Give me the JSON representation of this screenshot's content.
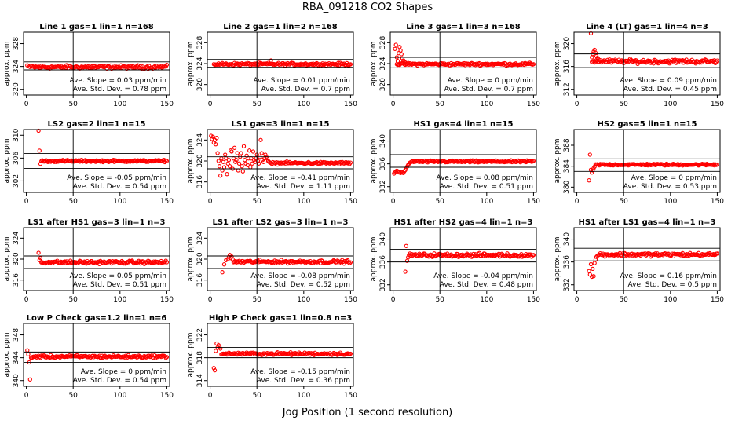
{
  "title": "RBA_091218  CO2 Shapes",
  "xlabel": "Jog Position (1 second resolution)",
  "chart_data": [
    {
      "type": "scatter",
      "title": "Line 1 gas=1 lin=1 n=168",
      "ylabel": "approx. ppm",
      "xlim": [
        -3,
        153
      ],
      "ylim": [
        319,
        330
      ],
      "xticks": [
        0,
        50,
        100,
        150
      ],
      "yticks": [
        320,
        324,
        328
      ],
      "hlines": [
        323.4,
        324.8
      ],
      "vline": 50,
      "slope_text": "Ave. Slope = 0.03  ppm/min",
      "sd_text": "Ave. Std. Dev. = 0.78  ppm",
      "baseline": 323.9,
      "noise": 0.25,
      "early": [
        [
          1,
          324.2
        ],
        [
          3,
          324.0
        ]
      ]
    },
    {
      "type": "scatter",
      "title": "Line 2 gas=1 lin=2 n=168",
      "ylabel": "approx. ppm",
      "xlim": [
        -3,
        153
      ],
      "ylim": [
        318,
        330
      ],
      "xticks": [
        0,
        50,
        100,
        150
      ],
      "yticks": [
        320,
        324,
        328
      ],
      "hlines": [
        323.3,
        324.8
      ],
      "vline": 50,
      "slope_text": "Ave. Slope = 0.01  ppm/min",
      "sd_text": "Ave. Std. Dev. = 0.7  ppm",
      "baseline": 323.9,
      "noise": 0.2,
      "early": [
        [
          65,
          324.6
        ]
      ]
    },
    {
      "type": "scatter",
      "title": "Line 3 gas=1 lin=3 n=168",
      "ylabel": "approx. ppm",
      "xlim": [
        -3,
        153
      ],
      "ylim": [
        318,
        330
      ],
      "xticks": [
        0,
        50,
        100,
        150
      ],
      "yticks": [
        320,
        324,
        328
      ],
      "hlines": [
        323.2,
        325.2
      ],
      "vline": 50,
      "slope_text": "Ave. Slope = 0  ppm/min",
      "sd_text": "Ave. Std. Dev. = 0.7  ppm",
      "baseline": 323.9,
      "noise": 0.2,
      "early": [
        [
          2,
          326.8
        ],
        [
          3,
          327.6
        ],
        [
          4,
          325.2
        ],
        [
          5,
          324.5
        ],
        [
          6,
          326.0
        ],
        [
          7,
          327.2
        ],
        [
          8,
          326.5
        ],
        [
          9,
          325.8
        ],
        [
          10,
          325.0
        ],
        [
          11,
          324.6
        ],
        [
          12,
          324.4
        ],
        [
          13,
          324.2
        ]
      ]
    },
    {
      "type": "scatter",
      "title": "Line 4 (LT) gas=1 lin=4 n=3",
      "ylabel": "approx. ppm",
      "xlim": [
        -3,
        153
      ],
      "ylim": [
        311,
        322
      ],
      "xticks": [
        0,
        50,
        100,
        150
      ],
      "yticks": [
        312,
        316,
        320
      ],
      "hlines": [
        315.8,
        318.2
      ],
      "vline": 50,
      "slope_text": "Ave. Slope = 0.09  ppm/min",
      "sd_text": "Ave. Std. Dev. = 0.45  ppm",
      "baseline": 316.9,
      "noise": 0.3,
      "start": 16,
      "early": [
        [
          15,
          321.8
        ],
        [
          16,
          317.6
        ],
        [
          17,
          318.2
        ],
        [
          18,
          318.6
        ],
        [
          19,
          318.9
        ],
        [
          20,
          318.4
        ],
        [
          21,
          317.8
        ],
        [
          22,
          317.5
        ],
        [
          23,
          317.3
        ]
      ]
    },
    {
      "type": "scatter",
      "title": "LS2 gas=2 lin=1 n=15",
      "ylabel": "approx. ppm",
      "xlim": [
        -3,
        153
      ],
      "ylim": [
        300,
        311
      ],
      "xticks": [
        0,
        50,
        100,
        150
      ],
      "yticks": [
        302,
        306,
        310
      ],
      "hlines": [
        304.2,
        306.8
      ],
      "vline": 50,
      "slope_text": "Ave. Slope = -0.05  ppm/min",
      "sd_text": "Ave. Std. Dev. = 0.54  ppm",
      "baseline": 305.5,
      "noise": 0.15,
      "start": 16,
      "early": [
        [
          13,
          310.8
        ],
        [
          14,
          307.3
        ],
        [
          15,
          305.0
        ]
      ]
    },
    {
      "type": "scatter",
      "title": "LS1 gas=3 lin=1 n=15",
      "ylabel": "approx. ppm",
      "xlim": [
        -3,
        153
      ],
      "ylim": [
        314,
        326
      ],
      "xticks": [
        0,
        50,
        100,
        150
      ],
      "yticks": [
        316,
        320,
        324
      ],
      "hlines": [
        318.5,
        320.8
      ],
      "vline": 50,
      "slope_text": "Ave. Slope = -0.41  ppm/min",
      "sd_text": "Ave. Std. Dev. = 1.11  ppm",
      "baseline": 319.6,
      "noise": 0.2,
      "start": 66,
      "early": [
        [
          1,
          324.8
        ],
        [
          2,
          324.2
        ],
        [
          3,
          324.6
        ],
        [
          4,
          323.5
        ],
        [
          5,
          324.0
        ],
        [
          6,
          323.2
        ],
        [
          7,
          324.4
        ],
        [
          8,
          321.5
        ],
        [
          9,
          320.0
        ],
        [
          10,
          319.0
        ],
        [
          11,
          317.2
        ],
        [
          12,
          320.5
        ],
        [
          13,
          318.2
        ],
        [
          14,
          319.8
        ],
        [
          15,
          318.8
        ],
        [
          16,
          321.2
        ],
        [
          17,
          320.5
        ],
        [
          18,
          317.5
        ],
        [
          19,
          319.5
        ],
        [
          20,
          320.2
        ],
        [
          21,
          319.0
        ],
        [
          22,
          322.0
        ],
        [
          23,
          321.8
        ],
        [
          24,
          318.5
        ],
        [
          25,
          320.5
        ],
        [
          26,
          322.5
        ],
        [
          27,
          319.8
        ],
        [
          28,
          320.2
        ],
        [
          29,
          321.5
        ],
        [
          30,
          318.2
        ],
        [
          31,
          319.5
        ],
        [
          32,
          320.8
        ],
        [
          33,
          321.5
        ],
        [
          34,
          319.0
        ],
        [
          35,
          318.0
        ],
        [
          36,
          322.8
        ],
        [
          37,
          320.2
        ],
        [
          38,
          319.5
        ],
        [
          39,
          321.0
        ],
        [
          40,
          319.2
        ],
        [
          41,
          320.5
        ],
        [
          42,
          322.0
        ],
        [
          43,
          318.8
        ],
        [
          44,
          320.5
        ],
        [
          45,
          319.5
        ],
        [
          46,
          321.8
        ],
        [
          47,
          320.2
        ],
        [
          48,
          319.8
        ],
        [
          49,
          320.5
        ],
        [
          50,
          321.2
        ],
        [
          51,
          320.0
        ],
        [
          52,
          319.5
        ],
        [
          53,
          320.8
        ],
        [
          54,
          324.0
        ],
        [
          55,
          321.5
        ],
        [
          56,
          320.2
        ],
        [
          57,
          319.8
        ],
        [
          58,
          320.5
        ],
        [
          59,
          321.2
        ],
        [
          60,
          320.8
        ],
        [
          61,
          320.5
        ],
        [
          62,
          320.0
        ],
        [
          63,
          319.8
        ],
        [
          64,
          319.7
        ],
        [
          65,
          319.6
        ]
      ]
    },
    {
      "type": "scatter",
      "title": "HS1 gas=4 lin=1 n=15",
      "ylabel": "approx. ppm",
      "xlim": [
        -3,
        153
      ],
      "ylim": [
        331,
        342
      ],
      "xticks": [
        0,
        50,
        100,
        150
      ],
      "yticks": [
        332,
        336,
        340
      ],
      "hlines": [
        335.4,
        337.6
      ],
      "vline": 50,
      "slope_text": "Ave. Slope = 0.08  ppm/min",
      "sd_text": "Ave. Std. Dev. = 0.51  ppm",
      "baseline": 336.4,
      "noise": 0.15,
      "start": 22,
      "early": [
        [
          1,
          334.3
        ],
        [
          2,
          334.5
        ],
        [
          3,
          334.6
        ],
        [
          4,
          334.8
        ],
        [
          5,
          334.7
        ],
        [
          6,
          334.5
        ],
        [
          7,
          334.6
        ],
        [
          8,
          334.4
        ],
        [
          9,
          334.6
        ],
        [
          10,
          334.5
        ],
        [
          11,
          334.4
        ],
        [
          12,
          334.7
        ],
        [
          13,
          334.9
        ],
        [
          14,
          335.2
        ],
        [
          15,
          335.5
        ],
        [
          16,
          335.8
        ],
        [
          17,
          336.0
        ],
        [
          18,
          336.2
        ],
        [
          19,
          336.3
        ],
        [
          20,
          336.4
        ],
        [
          21,
          336.5
        ]
      ]
    },
    {
      "type": "scatter",
      "title": "HS2 gas=5 lin=1 n=15",
      "ylabel": "approx. ppm",
      "xlim": [
        -3,
        153
      ],
      "ylim": [
        379,
        391
      ],
      "xticks": [
        0,
        50,
        100,
        150
      ],
      "yticks": [
        380,
        384,
        388
      ],
      "hlines": [
        383.0,
        385.4
      ],
      "vline": 50,
      "slope_text": "Ave. Slope = 0  ppm/min",
      "sd_text": "Ave. Std. Dev. = 0.53  ppm",
      "baseline": 384.3,
      "noise": 0.15,
      "start": 20,
      "early": [
        [
          13,
          381.3
        ],
        [
          14,
          386.2
        ],
        [
          15,
          383.3
        ],
        [
          16,
          382.8
        ],
        [
          17,
          383.2
        ],
        [
          18,
          383.6
        ],
        [
          19,
          383.9
        ]
      ]
    },
    {
      "type": "scatter",
      "title": "LS1 after HS1 gas=3 lin=1 n=3",
      "ylabel": "approx. ppm",
      "xlim": [
        -3,
        153
      ],
      "ylim": [
        314,
        326
      ],
      "xticks": [
        0,
        50,
        100,
        150
      ],
      "yticks": [
        316,
        320,
        324
      ],
      "hlines": [
        318.2,
        320.6
      ],
      "vline": 50,
      "slope_text": "Ave. Slope = 0.05  ppm/min",
      "sd_text": "Ave. Std. Dev. = 0.51  ppm",
      "baseline": 319.4,
      "noise": 0.25,
      "start": 16,
      "early": [
        [
          13,
          321.2
        ],
        [
          14,
          319.8
        ],
        [
          15,
          320.2
        ]
      ]
    },
    {
      "type": "scatter",
      "title": "LS1 after LS2 gas=3 lin=1 n=3",
      "ylabel": "approx. ppm",
      "xlim": [
        -3,
        153
      ],
      "ylim": [
        314,
        326
      ],
      "xticks": [
        0,
        50,
        100,
        150
      ],
      "yticks": [
        316,
        320,
        324
      ],
      "hlines": [
        318.2,
        320.6
      ],
      "vline": 50,
      "slope_text": "Ave. Slope = -0.08  ppm/min",
      "sd_text": "Ave. Std. Dev. = 0.52  ppm",
      "baseline": 319.5,
      "noise": 0.25,
      "start": 25,
      "early": [
        [
          13,
          317.5
        ],
        [
          15,
          319.0
        ],
        [
          17,
          319.8
        ],
        [
          19,
          320.0
        ],
        [
          20,
          320.4
        ],
        [
          21,
          320.8
        ],
        [
          22,
          320.2
        ],
        [
          23,
          320.5
        ],
        [
          24,
          320.0
        ]
      ]
    },
    {
      "type": "scatter",
      "title": "HS1 after HS2 gas=4 lin=1 n=3",
      "ylabel": "approx. ppm",
      "xlim": [
        -3,
        153
      ],
      "ylim": [
        331,
        342
      ],
      "xticks": [
        0,
        50,
        100,
        150
      ],
      "yticks": [
        332,
        336,
        340
      ],
      "hlines": [
        336.0,
        338.2
      ],
      "vline": 50,
      "slope_text": "Ave. Slope = -0.04  ppm/min",
      "sd_text": "Ave. Std. Dev. = 0.48  ppm",
      "baseline": 337.2,
      "noise": 0.25,
      "start": 17,
      "early": [
        [
          13,
          334.3
        ],
        [
          14,
          338.8
        ],
        [
          15,
          336.2
        ],
        [
          16,
          336.8
        ]
      ]
    },
    {
      "type": "scatter",
      "title": "HS1 after LS1 gas=4 lin=1 n=3",
      "ylabel": "approx. ppm",
      "xlim": [
        -3,
        153
      ],
      "ylim": [
        331,
        342
      ],
      "xticks": [
        0,
        50,
        100,
        150
      ],
      "yticks": [
        332,
        336,
        340
      ],
      "hlines": [
        336.2,
        338.4
      ],
      "vline": 50,
      "slope_text": "Ave. Slope = 0.16  ppm/min",
      "sd_text": "Ave. Std. Dev. = 0.5  ppm",
      "baseline": 337.3,
      "noise": 0.25,
      "start": 24,
      "early": [
        [
          13,
          334.4
        ],
        [
          14,
          333.8
        ],
        [
          15,
          335.6
        ],
        [
          16,
          333.4
        ],
        [
          17,
          334.8
        ],
        [
          18,
          333.5
        ],
        [
          19,
          335.8
        ],
        [
          20,
          336.4
        ],
        [
          21,
          336.9
        ],
        [
          22,
          337.1
        ],
        [
          23,
          337.2
        ]
      ]
    },
    {
      "type": "scatter",
      "title": "Low P Check gas=1.2 lin=1 n=6",
      "ylabel": "approx. ppm",
      "xlim": [
        -3,
        153
      ],
      "ylim": [
        339,
        350
      ],
      "xticks": [
        0,
        50,
        100,
        150
      ],
      "yticks": [
        340,
        344,
        348
      ],
      "hlines": [
        343.2,
        345.0
      ],
      "vline": 50,
      "slope_text": "Ave. Slope = 0  ppm/min",
      "sd_text": "Ave. Std. Dev. = 0.54  ppm",
      "baseline": 344.2,
      "noise": 0.2,
      "start": 6,
      "early": [
        [
          1,
          345.3
        ],
        [
          2,
          344.6
        ],
        [
          3,
          343.2
        ],
        [
          4,
          340.2
        ],
        [
          5,
          344.0
        ]
      ]
    },
    {
      "type": "scatter",
      "title": "High P Check gas=1 lin=0.8 n=3",
      "ylabel": "approx. ppm",
      "xlim": [
        -3,
        153
      ],
      "ylim": [
        313,
        324
      ],
      "xticks": [
        0,
        50,
        100,
        150
      ],
      "yticks": [
        314,
        318,
        322
      ],
      "hlines": [
        318.0,
        319.8
      ],
      "vline": 50,
      "slope_text": "Ave. Slope = -0.15  ppm/min",
      "sd_text": "Ave. Std. Dev. = 0.36  ppm",
      "baseline": 318.7,
      "noise": 0.2,
      "start": 12,
      "early": [
        [
          4,
          316.2
        ],
        [
          5,
          315.8
        ],
        [
          6,
          319.2
        ],
        [
          7,
          320.5
        ],
        [
          8,
          319.8
        ],
        [
          9,
          320.2
        ],
        [
          10,
          320.0
        ],
        [
          11,
          319.6
        ]
      ]
    }
  ],
  "colors": {
    "points": "#ff0000",
    "axis": "#000000"
  }
}
